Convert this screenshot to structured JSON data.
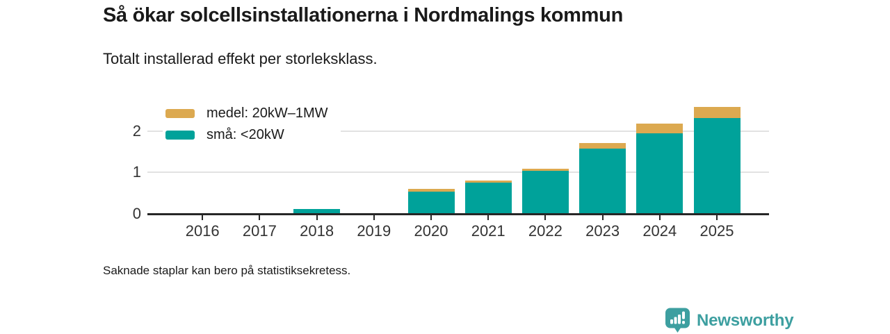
{
  "header": {
    "title": "Så ökar solcellsinstallationerna i Nordmalings kommun",
    "subtitle": "Totalt installerad effekt per storleksklass."
  },
  "chart_data": {
    "type": "bar",
    "stacked": true,
    "title": "Så ökar solcellsinstallationerna i Nordmalings kommun",
    "subtitle": "Totalt installerad effekt per storleksklass.",
    "categories": [
      "2016",
      "2017",
      "2018",
      "2019",
      "2020",
      "2021",
      "2022",
      "2023",
      "2024",
      "2025"
    ],
    "series": [
      {
        "name": "medel: 20kW–1MW",
        "color": "#dca950",
        "values": [
          null,
          null,
          0,
          null,
          0.07,
          0.06,
          0.06,
          0.13,
          0.24,
          0.27
        ]
      },
      {
        "name": "små: <20kW",
        "color": "#00a29a",
        "values": [
          null,
          null,
          0.1,
          null,
          0.52,
          0.74,
          1.03,
          1.58,
          1.94,
          2.31
        ]
      }
    ],
    "yticks": [
      "0",
      "1",
      "2"
    ],
    "ytick_values": [
      0,
      1,
      2
    ],
    "ylim": [
      0,
      2.6
    ],
    "grid": "horizontal",
    "legend_position": "top-left",
    "missing_years": [
      "2016",
      "2017",
      "2019"
    ]
  },
  "footer": {
    "note": "Saknade staplar kan bero på statistiksekretess."
  },
  "branding": {
    "logo_text": "Newsworthy",
    "logo_color": "#3d9fa0",
    "logo_icon": "speech-bubble-bar-chart"
  }
}
